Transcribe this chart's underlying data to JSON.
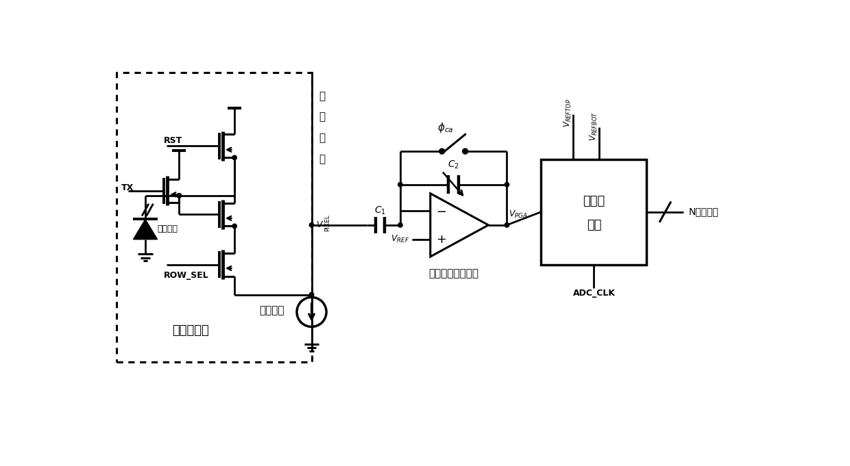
{
  "bg_color": "#ffffff",
  "labels": {
    "RST": "RST",
    "TX": "TX",
    "ROW_SEL": "ROW_SEL",
    "col_bus_chars": [
      "列",
      "输",
      "出",
      "线"
    ],
    "photo": "光检测器",
    "pixel": "像素点电路",
    "col_cs": "列电流源",
    "PGA": "可编程增益放大器",
    "ADC_line1": "模数转",
    "ADC_line2": "换器",
    "ADC_CLK": "ADC_CLK",
    "N_bit": "N位数字量"
  },
  "figsize": [
    12.4,
    6.81
  ],
  "dpi": 100
}
